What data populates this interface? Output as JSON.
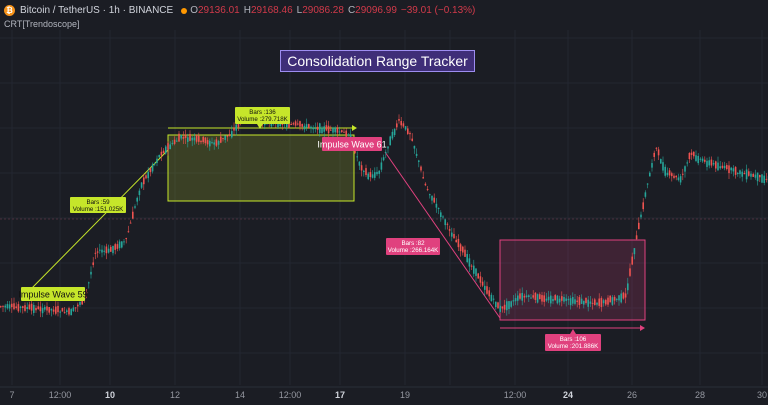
{
  "header": {
    "symbol": "Bitcoin / TetherUS · 1h · BINANCE",
    "logo_letter": "₿",
    "status_color": "#ff9800",
    "ohlc": [
      {
        "label": "O",
        "value": "29136.01"
      },
      {
        "label": "H",
        "value": "29168.46"
      },
      {
        "label": "L",
        "value": "29086.28"
      },
      {
        "label": "C",
        "value": "29096.99"
      }
    ],
    "change": "−39.01 (−0.13%)"
  },
  "indicator": {
    "name": "CRT[Trendoscope]"
  },
  "title": "Consolidation Range Tracker",
  "labels": {
    "impulse_59": "Impulse Wave 59",
    "impulse_61": "Impulse Wave 61",
    "bars_59": "Bars :59",
    "vol_59": "Volume :151.025K",
    "bars_136": "Bars :136",
    "vol_136": "Volume :279.718K",
    "bars_82": "Bars :82",
    "vol_82": "Volume :266.164K",
    "bars_106": "Bars :106",
    "vol_106": "Volume :201.886K"
  },
  "colors": {
    "background": "#1b1d24",
    "up": "#26a69a",
    "down": "#ef5350",
    "lime": "#c6e62a",
    "pink": "#e0417e",
    "title_bg": "#3f2e78"
  },
  "xaxis": [
    "7",
    "12:00",
    "10",
    "12",
    "14",
    "12:00",
    "17",
    "19",
    "12:00",
    "24",
    "26",
    "28",
    "30"
  ],
  "chart_data": {
    "type": "candlestick",
    "price_path": [
      [
        0,
        65
      ],
      [
        50,
        66
      ],
      [
        70,
        67
      ],
      [
        85,
        62
      ],
      [
        95,
        48
      ],
      [
        108,
        48
      ],
      [
        125,
        45
      ],
      [
        140,
        28
      ],
      [
        160,
        18
      ],
      [
        180,
        13
      ],
      [
        200,
        14
      ],
      [
        215,
        15
      ],
      [
        230,
        12
      ],
      [
        245,
        6
      ],
      [
        265,
        8
      ],
      [
        290,
        9
      ],
      [
        315,
        10
      ],
      [
        335,
        11
      ],
      [
        348,
        12
      ],
      [
        360,
        22
      ],
      [
        368,
        25
      ],
      [
        378,
        24
      ],
      [
        388,
        15
      ],
      [
        398,
        8
      ],
      [
        410,
        12
      ],
      [
        425,
        28
      ],
      [
        450,
        42
      ],
      [
        470,
        52
      ],
      [
        490,
        62
      ],
      [
        500,
        66
      ],
      [
        520,
        62
      ],
      [
        560,
        63
      ],
      [
        600,
        64
      ],
      [
        625,
        62
      ],
      [
        632,
        50
      ],
      [
        645,
        30
      ],
      [
        655,
        16
      ],
      [
        665,
        24
      ],
      [
        680,
        26
      ],
      [
        690,
        18
      ],
      [
        700,
        20
      ],
      [
        720,
        22
      ],
      [
        740,
        24
      ],
      [
        768,
        26
      ]
    ]
  }
}
